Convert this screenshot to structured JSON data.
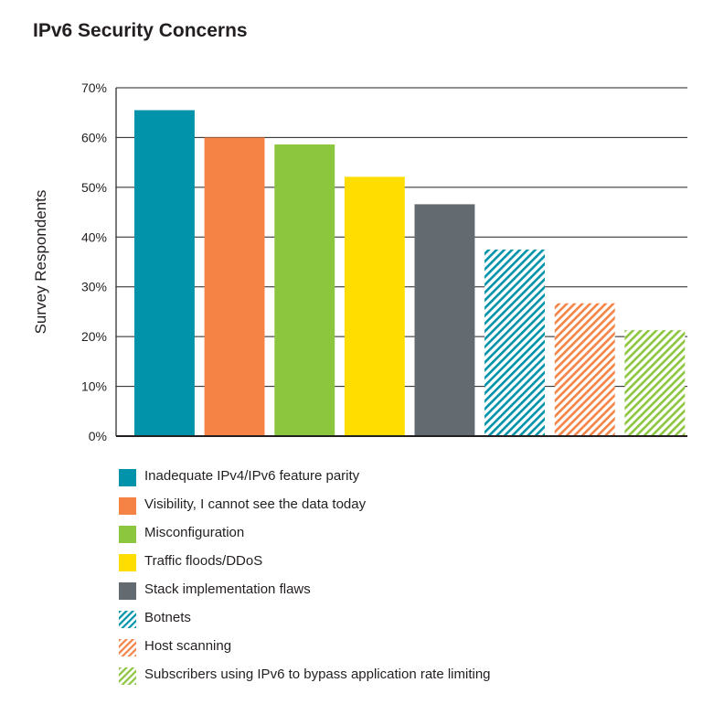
{
  "chart_data": {
    "type": "bar",
    "title": "IPv6 Security Concerns",
    "ylabel": "Survey Respondents",
    "xlabel": "",
    "ylim": [
      0,
      70
    ],
    "yticks": [
      "0%",
      "10%",
      "20%",
      "30%",
      "40%",
      "50%",
      "60%",
      "70%"
    ],
    "grid": true,
    "legend_position": "bottom",
    "categories": [
      "Inadequate IPv4/IPv6 feature parity",
      "Visibility, I cannot see the data today",
      "Misconfiguration",
      "Traffic floods/DDoS",
      "Stack implementation flaws",
      "Botnets",
      "Host scanning",
      "Subscribers using IPv6 to bypass application rate limiting"
    ],
    "values": [
      65.5,
      60,
      58.6,
      52.1,
      46.6,
      37.5,
      26.7,
      21.3
    ],
    "colors": [
      "#0093a9",
      "#f58345",
      "#8cc63f",
      "#ffdd00",
      "#636b70",
      "#0093a9",
      "#f58345",
      "#8cc63f"
    ],
    "patterns": [
      "solid",
      "solid",
      "solid",
      "solid",
      "solid",
      "hatched",
      "hatched",
      "hatched"
    ]
  }
}
